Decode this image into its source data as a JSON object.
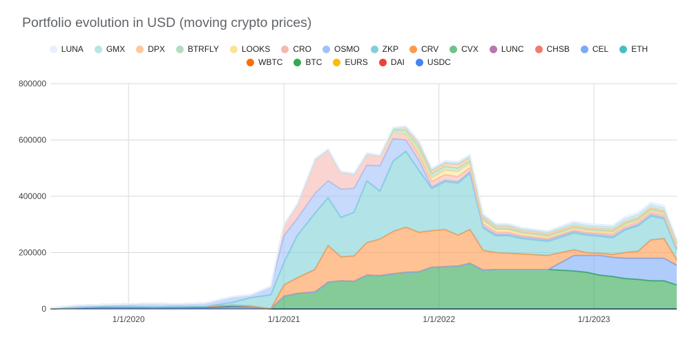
{
  "chart_data": {
    "type": "area",
    "stacked": true,
    "title": "Portfolio evolution in USD (moving crypto prices)",
    "xlabel": "",
    "ylabel": "",
    "x_ticks": [
      "1/1/2020",
      "1/1/2021",
      "1/1/2022",
      "1/1/2023"
    ],
    "y_ticks": [
      "0",
      "200000",
      "400000",
      "600000",
      "800000"
    ],
    "ylim": [
      0,
      800000
    ],
    "xlim": [
      "2019-07-01",
      "2023-07-15"
    ],
    "grid": "vertical and horizontal",
    "legend_position": "top",
    "x": [
      "2019-07-01",
      "2019-09-01",
      "2019-11-01",
      "2020-01-01",
      "2020-03-01",
      "2020-05-01",
      "2020-07-01",
      "2020-09-01",
      "2020-10-15",
      "2020-12-01",
      "2021-01-01",
      "2021-02-01",
      "2021-03-15",
      "2021-04-15",
      "2021-05-15",
      "2021-06-15",
      "2021-07-15",
      "2021-08-15",
      "2021-09-15",
      "2021-10-15",
      "2021-11-15",
      "2021-12-15",
      "2022-01-15",
      "2022-02-15",
      "2022-03-15",
      "2022-04-15",
      "2022-05-15",
      "2022-06-15",
      "2022-07-15",
      "2022-09-15",
      "2022-11-15",
      "2022-12-15",
      "2023-01-15",
      "2023-02-15",
      "2023-03-15",
      "2023-04-15",
      "2023-05-15",
      "2023-06-15",
      "2023-07-15"
    ],
    "series": [
      {
        "name": "USDC",
        "color": "#4285f4",
        "values": [
          0,
          3000,
          5000,
          5000,
          5000,
          5000,
          5000,
          8000,
          8000,
          0,
          0,
          0,
          0,
          0,
          0,
          0,
          0,
          0,
          0,
          0,
          0,
          0,
          0,
          0,
          0,
          0,
          0,
          0,
          0,
          0,
          0,
          0,
          0,
          0,
          0,
          0,
          0,
          0,
          0
        ]
      },
      {
        "name": "DAI",
        "color": "#ea4335",
        "values": [
          0,
          0,
          0,
          0,
          0,
          0,
          0,
          0,
          0,
          0,
          0,
          0,
          0,
          0,
          0,
          0,
          0,
          0,
          0,
          0,
          0,
          0,
          0,
          0,
          0,
          0,
          0,
          0,
          0,
          0,
          0,
          0,
          0,
          0,
          0,
          0,
          0,
          0,
          0
        ]
      },
      {
        "name": "EURS",
        "color": "#fbbc04",
        "values": [
          0,
          0,
          0,
          0,
          0,
          0,
          0,
          0,
          0,
          0,
          0,
          0,
          0,
          0,
          0,
          0,
          0,
          0,
          0,
          0,
          0,
          0,
          0,
          0,
          0,
          0,
          0,
          0,
          0,
          0,
          0,
          0,
          0,
          0,
          0,
          0,
          0,
          0,
          0
        ]
      },
      {
        "name": "BTC",
        "color": "#34a853",
        "values": [
          0,
          2000,
          3000,
          3000,
          2000,
          3000,
          4000,
          5000,
          2000,
          0,
          45000,
          55000,
          60000,
          95000,
          100000,
          98000,
          120000,
          118000,
          125000,
          130000,
          132000,
          148000,
          150000,
          152000,
          162000,
          138000,
          140000,
          140000,
          140000,
          140000,
          135000,
          130000,
          120000,
          115000,
          108000,
          105000,
          100000,
          100000,
          85000
        ]
      },
      {
        "name": "WBTC",
        "color": "#ff6d01",
        "values": [
          0,
          0,
          0,
          0,
          0,
          0,
          0,
          0,
          0,
          0,
          0,
          0,
          0,
          0,
          0,
          0,
          0,
          0,
          0,
          0,
          0,
          0,
          0,
          0,
          0,
          0,
          0,
          0,
          0,
          0,
          0,
          0,
          0,
          0,
          0,
          0,
          0,
          0,
          0
        ]
      },
      {
        "name": "ETH",
        "color": "#46bdc6",
        "values": [
          0,
          0,
          0,
          0,
          0,
          0,
          0,
          0,
          0,
          0,
          0,
          0,
          0,
          0,
          0,
          0,
          0,
          0,
          0,
          0,
          0,
          0,
          0,
          0,
          0,
          0,
          0,
          0,
          0,
          0,
          0,
          0,
          0,
          0,
          0,
          0,
          0,
          0,
          0
        ]
      },
      {
        "name": "CEL",
        "color": "#7baaf7",
        "values": [
          0,
          0,
          0,
          0,
          0,
          0,
          0,
          0,
          0,
          0,
          0,
          0,
          0,
          0,
          0,
          0,
          0,
          0,
          0,
          0,
          0,
          0,
          0,
          0,
          0,
          0,
          0,
          0,
          0,
          0,
          55000,
          60000,
          70000,
          68000,
          72000,
          75000,
          80000,
          80000,
          70000
        ]
      },
      {
        "name": "CHSB",
        "color": "#f07b72",
        "values": [
          0,
          0,
          0,
          0,
          0,
          0,
          0,
          0,
          0,
          0,
          0,
          0,
          0,
          0,
          0,
          0,
          0,
          0,
          0,
          0,
          0,
          0,
          0,
          0,
          0,
          0,
          0,
          0,
          0,
          0,
          0,
          0,
          0,
          0,
          0,
          0,
          0,
          0,
          0
        ]
      },
      {
        "name": "LUNC",
        "color": "#b877a8",
        "values": [
          0,
          0,
          0,
          0,
          0,
          0,
          0,
          0,
          0,
          0,
          0,
          0,
          0,
          0,
          0,
          0,
          0,
          0,
          0,
          0,
          0,
          0,
          0,
          0,
          0,
          0,
          0,
          0,
          0,
          0,
          0,
          0,
          0,
          0,
          0,
          0,
          0,
          0,
          0
        ]
      },
      {
        "name": "CVX",
        "color": "#71c287",
        "values": [
          0,
          0,
          0,
          0,
          0,
          0,
          0,
          0,
          0,
          0,
          0,
          0,
          0,
          0,
          0,
          0,
          0,
          0,
          0,
          0,
          0,
          0,
          0,
          0,
          0,
          0,
          0,
          0,
          0,
          0,
          0,
          0,
          0,
          0,
          0,
          0,
          0,
          0,
          0
        ]
      },
      {
        "name": "CRV",
        "color": "#ff994d",
        "values": [
          0,
          0,
          0,
          0,
          0,
          0,
          0,
          0,
          0,
          0,
          40000,
          55000,
          80000,
          130000,
          85000,
          90000,
          115000,
          130000,
          150000,
          160000,
          140000,
          130000,
          132000,
          110000,
          120000,
          70000,
          60000,
          58000,
          55000,
          50000,
          20000,
          10000,
          8000,
          10000,
          20000,
          25000,
          65000,
          70000,
          20000
        ]
      },
      {
        "name": "ZKP",
        "color": "#7ed1d7",
        "values": [
          0,
          0,
          0,
          0,
          0,
          0,
          0,
          10000,
          30000,
          50000,
          80000,
          150000,
          200000,
          170000,
          140000,
          155000,
          220000,
          170000,
          250000,
          270000,
          220000,
          150000,
          170000,
          185000,
          200000,
          80000,
          60000,
          62000,
          55000,
          50000,
          60000,
          62000,
          60000,
          60000,
          80000,
          90000,
          85000,
          70000,
          35000
        ]
      },
      {
        "name": "OSMO",
        "color": "#a1c2fa",
        "values": [
          3000,
          8000,
          7000,
          10000,
          12000,
          10000,
          12000,
          20000,
          10000,
          30000,
          95000,
          60000,
          70000,
          60000,
          100000,
          85000,
          55000,
          90000,
          80000,
          40000,
          35000,
          5000,
          5000,
          5000,
          5000,
          5000,
          5000,
          5000,
          5000,
          5000,
          5000,
          5000,
          5000,
          5000,
          5000,
          5000,
          5000,
          5000,
          5000
        ]
      },
      {
        "name": "CRO",
        "color": "#f5b8b3",
        "values": [
          0,
          0,
          0,
          0,
          0,
          0,
          0,
          0,
          0,
          0,
          40000,
          50000,
          120000,
          110000,
          60000,
          50000,
          40000,
          35000,
          20000,
          20000,
          20000,
          20000,
          20000,
          18000,
          15000,
          10000,
          8000,
          7000,
          6000,
          5000,
          5000,
          5000,
          6000,
          8000,
          8000,
          8000,
          8000,
          8000,
          5000
        ]
      },
      {
        "name": "LOOKS",
        "color": "#fde293",
        "values": [
          0,
          0,
          0,
          0,
          0,
          0,
          0,
          0,
          0,
          0,
          0,
          0,
          0,
          0,
          0,
          0,
          0,
          0,
          0,
          0,
          10000,
          12000,
          15000,
          18000,
          15000,
          10000,
          8000,
          8000,
          7000,
          6000,
          6000,
          6000,
          6000,
          6000,
          6000,
          6000,
          6000,
          6000,
          5000
        ]
      },
      {
        "name": "BTRFLY",
        "color": "#b3dcc1",
        "values": [
          0,
          0,
          0,
          0,
          0,
          0,
          0,
          0,
          0,
          0,
          0,
          0,
          0,
          0,
          0,
          0,
          0,
          0,
          10000,
          15000,
          18000,
          15000,
          14000,
          12000,
          10000,
          6000,
          5000,
          5000,
          5000,
          5000,
          5000,
          5000,
          5000,
          5000,
          5000,
          5000,
          5000,
          5000,
          5000
        ]
      },
      {
        "name": "DPX",
        "color": "#fcc99c",
        "values": [
          0,
          0,
          0,
          0,
          0,
          0,
          0,
          0,
          0,
          0,
          0,
          0,
          0,
          0,
          0,
          0,
          0,
          0,
          5000,
          10000,
          12000,
          10000,
          10000,
          12000,
          10000,
          8000,
          7000,
          7000,
          6000,
          6000,
          6000,
          6000,
          6000,
          6000,
          6000,
          6000,
          6000,
          5000,
          5000
        ]
      },
      {
        "name": "GMX",
        "color": "#b7e4e8",
        "values": [
          0,
          0,
          0,
          0,
          0,
          0,
          0,
          0,
          0,
          0,
          0,
          0,
          0,
          0,
          0,
          0,
          0,
          0,
          0,
          0,
          5000,
          5000,
          5000,
          6000,
          6000,
          6000,
          6000,
          6000,
          6000,
          6000,
          8000,
          8000,
          8000,
          8000,
          10000,
          10000,
          10000,
          10000,
          8000
        ]
      },
      {
        "name": "LUNA",
        "color": "#e8f0fe",
        "values": [
          0,
          0,
          0,
          0,
          0,
          0,
          0,
          0,
          0,
          0,
          0,
          3000,
          4000,
          4000,
          4000,
          4000,
          4000,
          4000,
          4000,
          5000,
          5000,
          5000,
          5000,
          5000,
          5000,
          5000,
          4000,
          4000,
          4000,
          4000,
          6000,
          6000,
          6000,
          6000,
          8000,
          8000,
          8000,
          8000,
          6000
        ]
      }
    ]
  },
  "legend": {
    "rows": [
      [
        {
          "name": "LUNA",
          "color": "#e8f0fe"
        },
        {
          "name": "GMX",
          "color": "#b7e4e8"
        },
        {
          "name": "DPX",
          "color": "#fcc99c"
        },
        {
          "name": "BTRFLY",
          "color": "#b3dcc1"
        },
        {
          "name": "LOOKS",
          "color": "#fde293"
        },
        {
          "name": "CRO",
          "color": "#f5b8b3"
        },
        {
          "name": "OSMO",
          "color": "#a1c2fa"
        },
        {
          "name": "ZKP",
          "color": "#7ed1d7"
        },
        {
          "name": "CRV",
          "color": "#ff994d"
        },
        {
          "name": "CVX",
          "color": "#71c287"
        },
        {
          "name": "LUNC",
          "color": "#b877a8"
        },
        {
          "name": "CHSB",
          "color": "#f07b72"
        },
        {
          "name": "CEL",
          "color": "#7baaf7"
        },
        {
          "name": "ETH",
          "color": "#46bdc6"
        }
      ],
      [
        {
          "name": "WBTC",
          "color": "#ff6d01"
        },
        {
          "name": "BTC",
          "color": "#34a853"
        },
        {
          "name": "EURS",
          "color": "#fbbc04"
        },
        {
          "name": "DAI",
          "color": "#ea4335"
        },
        {
          "name": "USDC",
          "color": "#4285f4"
        }
      ]
    ]
  }
}
